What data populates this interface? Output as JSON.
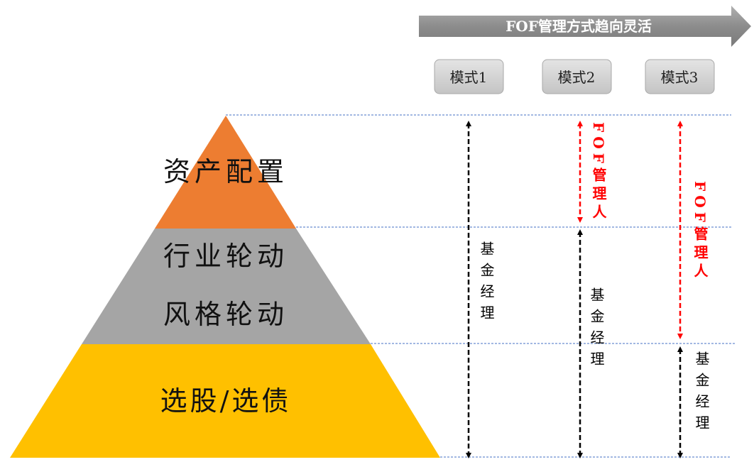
{
  "banner": {
    "label": "FOF管理方式趋向灵活"
  },
  "modes": [
    {
      "label": "模式1"
    },
    {
      "label": "模式2"
    },
    {
      "label": "模式3"
    }
  ],
  "pyramid": {
    "top": {
      "label": "资产配置",
      "color": "#ED7D31"
    },
    "middle": {
      "label_1": "行业轮动",
      "label_2": "风格轮动",
      "color": "#A5A5A5"
    },
    "bottom": {
      "label": "选股/选债",
      "color": "#FFC000"
    }
  },
  "roles": {
    "fund_manager": "基金经理",
    "fof_manager": "FOF管理人"
  },
  "colors": {
    "fof_manager": "#FF0000",
    "fund_manager": "#000000",
    "guide_line": "#4472C4"
  }
}
